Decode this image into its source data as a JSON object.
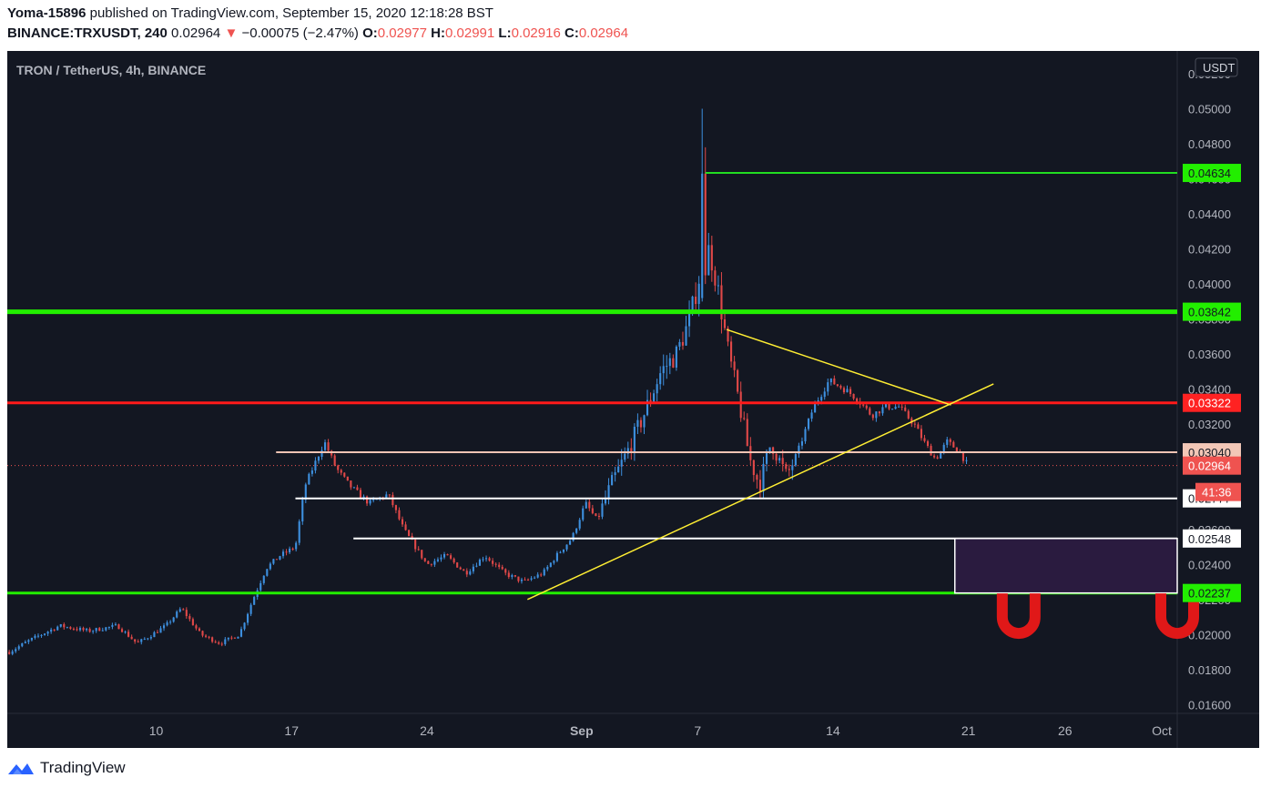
{
  "header": {
    "publisher": "Yoma-15896",
    "published_text": "published on TradingView.com, September 15, 2020 12:18:28 BST",
    "symbol": "BINANCE:TRXUSDT, 240",
    "last": "0.02964",
    "change_arrow": "▼",
    "change": "−0.00075 (−2.47%)",
    "o_label": "O:",
    "o_value": "0.02977",
    "h_label": "H:",
    "h_value": "0.02991",
    "l_label": "L:",
    "l_value": "0.02916",
    "c_label": "C:",
    "c_value": "0.02964"
  },
  "chart_data": {
    "type": "candlestick",
    "title": "TRON / TetherUS, 4h, BINANCE",
    "currency": "USDT",
    "ylim": [
      0.0155,
      0.0533
    ],
    "y_ticks": [
      "0.01600",
      "0.01800",
      "0.02000",
      "0.02200",
      "0.02400",
      "0.02600",
      "0.02800",
      "0.03000",
      "0.03200",
      "0.03400",
      "0.03600",
      "0.03800",
      "0.04000",
      "0.04200",
      "0.04400",
      "0.04600",
      "0.04800",
      "0.05000",
      "0.05200"
    ],
    "x_ticks": [
      {
        "label": "10",
        "day": 10
      },
      {
        "label": "17",
        "day": 17
      },
      {
        "label": "24",
        "day": 24
      },
      {
        "label": "Sep",
        "day": 32
      },
      {
        "label": "7",
        "day": 38
      },
      {
        "label": "14",
        "day": 45
      },
      {
        "label": "21",
        "day": 52
      },
      {
        "label": "26",
        "day": 57
      },
      {
        "label": "Oct",
        "day": 62
      }
    ],
    "x_range_days": [
      2.3,
      62.8
    ],
    "candle_interval": "4h",
    "price_anchors": [
      [
        2.4,
        0.019
      ],
      [
        3.5,
        0.0197
      ],
      [
        5,
        0.0205
      ],
      [
        6.5,
        0.0202
      ],
      [
        8,
        0.0205
      ],
      [
        9,
        0.0195
      ],
      [
        9.5,
        0.0198
      ],
      [
        10.5,
        0.0205
      ],
      [
        11.3,
        0.0215
      ],
      [
        12.3,
        0.02
      ],
      [
        13.3,
        0.0195
      ],
      [
        14.3,
        0.02
      ],
      [
        15,
        0.022
      ],
      [
        15.7,
        0.0238
      ],
      [
        16.4,
        0.0245
      ],
      [
        17.2,
        0.025
      ],
      [
        17.7,
        0.0285
      ],
      [
        18.7,
        0.031
      ],
      [
        19.3,
        0.0295
      ],
      [
        20,
        0.0285
      ],
      [
        21,
        0.0275
      ],
      [
        22,
        0.028
      ],
      [
        22.8,
        0.026
      ],
      [
        24,
        0.024
      ],
      [
        25,
        0.0245
      ],
      [
        26,
        0.0235
      ],
      [
        27,
        0.0245
      ],
      [
        28,
        0.0235
      ],
      [
        29,
        0.023
      ],
      [
        30,
        0.0235
      ],
      [
        30.7,
        0.0245
      ],
      [
        31.5,
        0.0255
      ],
      [
        32.2,
        0.0275
      ],
      [
        32.8,
        0.0265
      ],
      [
        33.5,
        0.0285
      ],
      [
        34.4,
        0.0305
      ],
      [
        35.2,
        0.0325
      ],
      [
        36.1,
        0.035
      ],
      [
        36.9,
        0.036
      ],
      [
        37.6,
        0.038
      ],
      [
        38.2,
        0.041
      ],
      [
        38.6,
        0.042
      ],
      [
        39,
        0.04
      ],
      [
        39.6,
        0.036
      ],
      [
        40.1,
        0.0335
      ],
      [
        40.7,
        0.03
      ],
      [
        41.2,
        0.0285
      ],
      [
        41.8,
        0.031
      ],
      [
        42.6,
        0.029
      ],
      [
        43.2,
        0.0305
      ],
      [
        44,
        0.033
      ],
      [
        44.8,
        0.0345
      ],
      [
        45.6,
        0.034
      ],
      [
        46.2,
        0.0335
      ],
      [
        47,
        0.0325
      ],
      [
        47.7,
        0.033
      ],
      [
        48.4,
        0.033
      ],
      [
        49.2,
        0.032
      ],
      [
        49.7,
        0.031
      ],
      [
        50.3,
        0.03
      ],
      [
        50.9,
        0.031
      ],
      [
        51.5,
        0.0305
      ],
      [
        52,
        0.0296
      ]
    ],
    "spike": {
      "day": 38.3,
      "high": 0.05,
      "marked": 0.0463
    },
    "horizontal_levels": [
      {
        "value": 0.04634,
        "label": "0.04634",
        "color": "#22dd22",
        "label_bg": "#22ee00",
        "label_color": "#131722",
        "start_day": 38.4,
        "thickness": 2
      },
      {
        "value": 0.03842,
        "label": "0.03842",
        "color": "#22ee00",
        "label_bg": "#22ee00",
        "label_color": "#131722",
        "start_day": 2.3,
        "thickness": 5
      },
      {
        "value": 0.03322,
        "label": "0.03322",
        "color": "#ff1a1a",
        "label_bg": "#ff2222",
        "label_color": "#ffffff",
        "start_day": 2.3,
        "thickness": 3
      },
      {
        "value": 0.0304,
        "label": "0.03040",
        "color": "#f0c4b4",
        "label_bg": "#f2c7b7",
        "label_color": "#131722",
        "start_day": 16.2,
        "thickness": 2
      },
      {
        "value": 0.02777,
        "label": "0.02777",
        "color": "#ffffff",
        "label_bg": "#ffffff",
        "label_color": "#131722",
        "start_day": 17.2,
        "thickness": 2
      },
      {
        "value": 0.02548,
        "label": "0.02548",
        "color": "#ffffff",
        "label_bg": "#ffffff",
        "label_color": "#131722",
        "start_day": 20.2,
        "thickness": 2
      },
      {
        "value": 0.02237,
        "label": "0.02237",
        "color": "#22ee00",
        "label_bg": "#22ee00",
        "label_color": "#131722",
        "start_day": 2.3,
        "thickness": 3
      }
    ],
    "current_price": {
      "value": 0.02964,
      "label": "0.02964",
      "countdown": "41:36",
      "color": "#ef5350"
    },
    "triangle_upper": [
      [
        39.5,
        0.0374
      ],
      [
        51.1,
        0.0331
      ]
    ],
    "triangle_lower": [
      [
        29.2,
        0.022
      ],
      [
        53.3,
        0.0343
      ]
    ],
    "zone": {
      "from_day": 51.3,
      "to_day": 62.8,
      "top": 0.02548,
      "bottom": 0.02237,
      "fill": "#2a1b3f",
      "stroke": "#ffffff"
    },
    "magnets": [
      {
        "day": 54.6,
        "value": 0.021
      },
      {
        "day": 62.8,
        "value": 0.021
      }
    ]
  },
  "footer": {
    "brand": "TradingView"
  }
}
